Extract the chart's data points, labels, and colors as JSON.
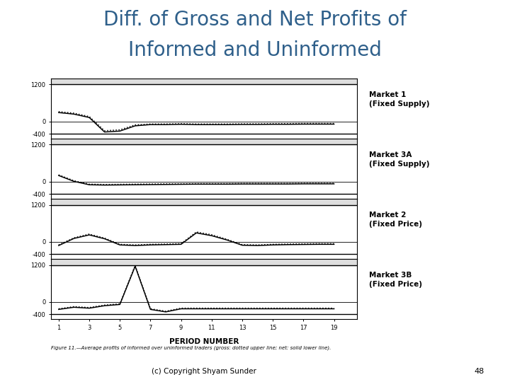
{
  "title_line1": "Diff. of Gross and Net Profits of",
  "title_line2": "Informed and Uninformed",
  "title_color": "#2e5f8a",
  "title_fontsize": 20,
  "background_color": "#ffffff",
  "xlabel": "PERIOD NUMBER",
  "ylabel_ticks": [
    "-400",
    "0",
    "1200"
  ],
  "yticks": [
    -400,
    0,
    1200
  ],
  "ylim": [
    -550,
    1400
  ],
  "xlim": [
    0.5,
    20.5
  ],
  "xticks": [
    1,
    3,
    5,
    7,
    9,
    11,
    13,
    15,
    17,
    19
  ],
  "copyright": "(c) Copyright Shyam Sunder",
  "page_number": "48",
  "caption": "Figure 11.—Average profits of informed over uninformed traders (gross: dotted upper line; net: solid lower line).",
  "panels": [
    {
      "label": "Market 1\n(Fixed Supply)",
      "gross": [
        320,
        270,
        160,
        -300,
        -270,
        -110,
        -80,
        -80,
        -70,
        -80,
        -80,
        -80,
        -75,
        -75,
        -70,
        -70,
        -65,
        -65,
        -65
      ],
      "net": [
        290,
        240,
        130,
        -340,
        -310,
        -140,
        -100,
        -100,
        -90,
        -100,
        -100,
        -100,
        -95,
        -95,
        -90,
        -90,
        -85,
        -85,
        -85
      ]
    },
    {
      "label": "Market 3A\n(Fixed Supply)",
      "gross": [
        220,
        30,
        -80,
        -90,
        -85,
        -80,
        -75,
        -70,
        -70,
        -65,
        -65,
        -65,
        -60,
        -60,
        -60,
        -60,
        -55,
        -55,
        -55
      ],
      "net": [
        200,
        10,
        -100,
        -110,
        -105,
        -100,
        -95,
        -90,
        -85,
        -80,
        -80,
        -80,
        -75,
        -75,
        -75,
        -75,
        -70,
        -70,
        -70
      ]
    },
    {
      "label": "Market 2\n(Fixed Price)",
      "gross": [
        -100,
        130,
        250,
        120,
        -80,
        -100,
        -80,
        -70,
        -60,
        320,
        230,
        80,
        -90,
        -100,
        -80,
        -70,
        -65,
        -60,
        -60
      ],
      "net": [
        -120,
        110,
        225,
        100,
        -100,
        -120,
        -100,
        -90,
        -80,
        290,
        200,
        60,
        -110,
        -120,
        -100,
        -90,
        -85,
        -80,
        -80
      ]
    },
    {
      "label": "Market 3B\n(Fixed Price)",
      "gross": [
        -220,
        -150,
        -180,
        -100,
        -60,
        1180,
        -220,
        -300,
        -200,
        -200,
        -200,
        -200,
        -200,
        -200,
        -200,
        -200,
        -200,
        -200,
        -200
      ],
      "net": [
        -240,
        -170,
        -200,
        -120,
        -80,
        1160,
        -240,
        -320,
        -220,
        -220,
        -220,
        -220,
        -220,
        -220,
        -220,
        -220,
        -220,
        -220,
        -220
      ]
    }
  ],
  "periods": [
    1,
    2,
    3,
    4,
    5,
    6,
    7,
    8,
    9,
    10,
    11,
    12,
    13,
    14,
    15,
    16,
    17,
    18,
    19
  ]
}
